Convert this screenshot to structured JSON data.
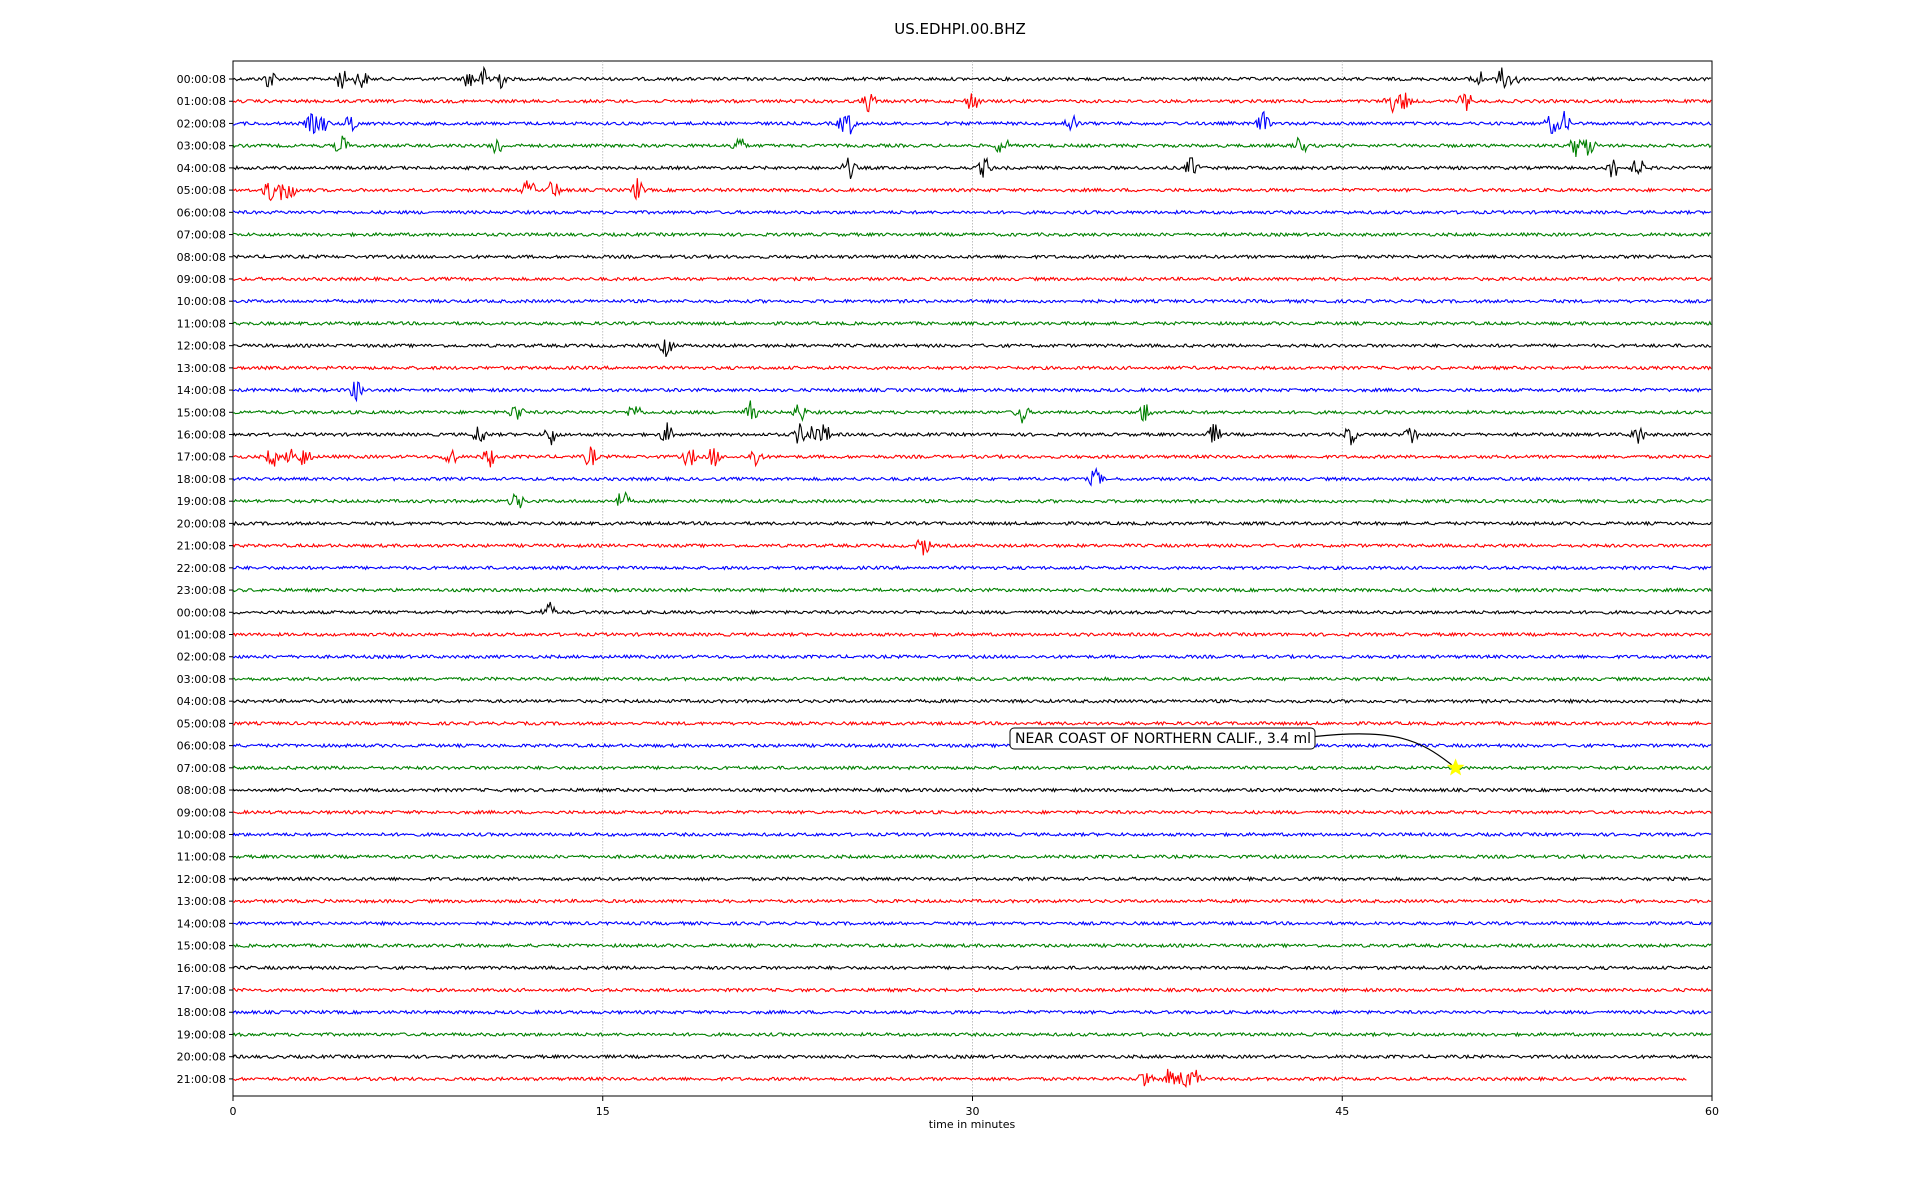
{
  "chart_data": {
    "type": "line",
    "title": "US.EDHPI.00.BHZ",
    "xlabel": "time in minutes",
    "ylabel": "",
    "xlim": [
      0,
      60
    ],
    "x_ticks": [
      "0",
      "15",
      "30",
      "45",
      "60"
    ],
    "grid": "vertical dotted lines at x ticks",
    "colors": [
      "#000000",
      "#ff0000",
      "#0000ff",
      "#008000"
    ],
    "row_labels": [
      "00:00:08",
      "01:00:08",
      "02:00:08",
      "03:00:08",
      "04:00:08",
      "05:00:08",
      "06:00:08",
      "07:00:08",
      "08:00:08",
      "09:00:08",
      "10:00:08",
      "11:00:08",
      "12:00:08",
      "13:00:08",
      "14:00:08",
      "15:00:08",
      "16:00:08",
      "17:00:08",
      "18:00:08",
      "19:00:08",
      "20:00:08",
      "21:00:08",
      "22:00:08",
      "23:00:08",
      "00:00:08",
      "01:00:08",
      "02:00:08",
      "03:00:08",
      "04:00:08",
      "05:00:08",
      "06:00:08",
      "07:00:08",
      "08:00:08",
      "09:00:08",
      "10:00:08",
      "11:00:08",
      "12:00:08",
      "13:00:08",
      "14:00:08",
      "15:00:08",
      "16:00:08",
      "17:00:08",
      "18:00:08",
      "19:00:08",
      "20:00:08",
      "21:00:08"
    ],
    "last_row_end_minute": 59,
    "bursts": [
      {
        "row": 0,
        "t": [
          1.5,
          4.4,
          5.2,
          9.6,
          10.2,
          10.8,
          50.5,
          51.5,
          52
        ]
      },
      {
        "row": 1,
        "t": [
          25.8,
          30,
          47,
          47.5,
          50
        ]
      },
      {
        "row": 2,
        "t": [
          3.2,
          3.6,
          4.8,
          24.8,
          25,
          34,
          41.8,
          53.5,
          54
        ]
      },
      {
        "row": 3,
        "t": [
          4.4,
          10.7,
          20.5,
          31.2,
          43.3,
          54.5,
          55
        ]
      },
      {
        "row": 4,
        "t": [
          25,
          30.5,
          38.9,
          56,
          57
        ]
      },
      {
        "row": 5,
        "t": [
          1.5,
          1.9,
          2.3,
          12,
          13,
          16.4
        ]
      },
      {
        "row": 12,
        "t": [
          17.6
        ]
      },
      {
        "row": 14,
        "t": [
          5
        ]
      },
      {
        "row": 15,
        "t": [
          11.5,
          16.3,
          21,
          23,
          32,
          37
        ]
      },
      {
        "row": 16,
        "t": [
          10,
          12.9,
          17.6,
          23,
          23.5,
          24,
          39.8,
          45.3,
          47.8,
          57
        ]
      },
      {
        "row": 17,
        "t": [
          1.6,
          2.4,
          2.9,
          8.8,
          10.4,
          14.5,
          18.5,
          19.5,
          21.2
        ]
      },
      {
        "row": 18,
        "t": [
          35
        ]
      },
      {
        "row": 19,
        "t": [
          11.5,
          15.8
        ]
      },
      {
        "row": 21,
        "t": [
          28
        ]
      },
      {
        "row": 24,
        "t": [
          12.8
        ]
      },
      {
        "row": 45,
        "t": [
          37,
          38,
          38.6,
          39
        ]
      }
    ],
    "annotation": {
      "text": "NEAR COAST OF NORTHERN CALIF., 3.4 ml",
      "row": 31,
      "minute": 49.6,
      "marker_color": "#ffff00"
    }
  }
}
